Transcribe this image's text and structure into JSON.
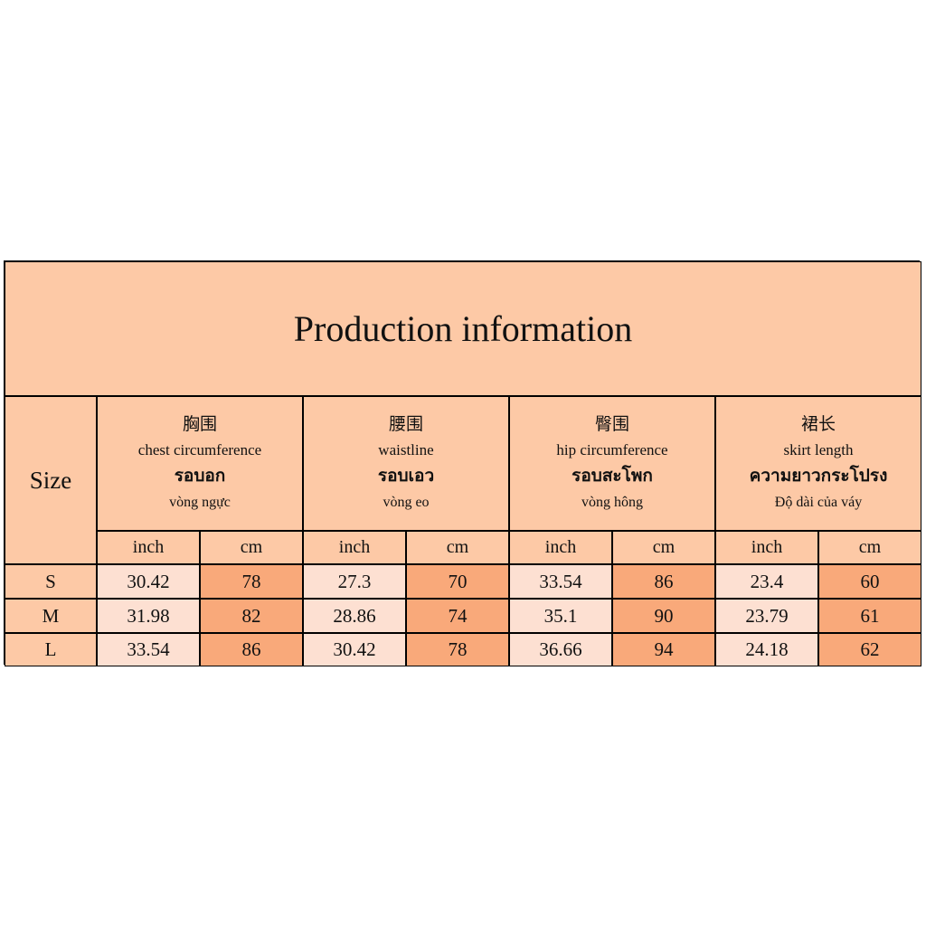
{
  "title": "Production information",
  "size_label": "Size",
  "columns": [
    {
      "zh": "胸围",
      "en": "chest circumference",
      "th": "รอบอก",
      "vi": "vòng ngực",
      "units": [
        "inch",
        "cm"
      ]
    },
    {
      "zh": "腰围",
      "en": "waistline",
      "th": "รอบเอว",
      "vi": "vòng eo",
      "units": [
        "inch",
        "cm"
      ]
    },
    {
      "zh": "臀围",
      "en": "hip circumference",
      "th": "รอบสะโพก",
      "vi": "vòng hông",
      "units": [
        "inch",
        "cm"
      ]
    },
    {
      "zh": "裙长",
      "en": "skirt length",
      "th": "ความยาวกระโปรง",
      "vi": "Độ dài của váy",
      "units": [
        "inch",
        "cm"
      ]
    }
  ],
  "rows": [
    {
      "size": "S",
      "values": [
        30.42,
        78,
        27.3,
        70,
        33.54,
        86,
        23.4,
        60
      ]
    },
    {
      "size": "M",
      "values": [
        31.98,
        82,
        28.86,
        74,
        35.1,
        90,
        23.79,
        61
      ]
    },
    {
      "size": "L",
      "values": [
        33.54,
        86,
        30.42,
        78,
        36.66,
        94,
        24.18,
        62
      ]
    }
  ]
}
